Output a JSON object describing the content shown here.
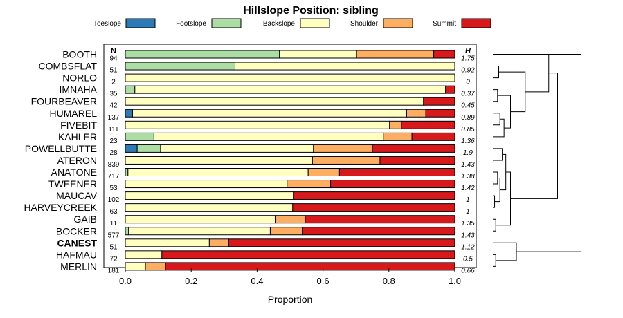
{
  "chart_data": {
    "type": "bar",
    "stacked": true,
    "orientation": "horizontal",
    "title": "Hillslope Position: sibling",
    "xlabel": "Proportion",
    "xlim": [
      0,
      1
    ],
    "x_ticks": [
      "0.0",
      "0.2",
      "0.4",
      "0.6",
      "0.8",
      "1.0"
    ],
    "n_header": "N",
    "h_header": "H",
    "highlight": "CANEST",
    "legend": [
      {
        "name": "Toeslope",
        "color": "#2c7bb6"
      },
      {
        "name": "Footslope",
        "color": "#abdda4"
      },
      {
        "name": "Backslope",
        "color": "#ffffbf"
      },
      {
        "name": "Shoulder",
        "color": "#fdae61"
      },
      {
        "name": "Summit",
        "color": "#d7191c"
      }
    ],
    "rows": [
      {
        "label": "BOOTH",
        "n": "94",
        "h": "1.75",
        "values": [
          0,
          0.468,
          0.234,
          0.234,
          0.064
        ]
      },
      {
        "label": "COMBSFLAT",
        "n": "51",
        "h": "0.92",
        "values": [
          0,
          0.333,
          0.667,
          0,
          0
        ]
      },
      {
        "label": "NORLO",
        "n": "2",
        "h": "0",
        "values": [
          0,
          0,
          1.0,
          0,
          0
        ]
      },
      {
        "label": "IMNAHA",
        "n": "35",
        "h": "0.37",
        "values": [
          0,
          0.029,
          0.943,
          0,
          0.028
        ]
      },
      {
        "label": "FOURBEAVER",
        "n": "42",
        "h": "0.45",
        "values": [
          0,
          0,
          0.905,
          0,
          0.095
        ]
      },
      {
        "label": "HUMAREL",
        "n": "137",
        "h": "0.89",
        "values": [
          0.022,
          0,
          0.832,
          0.058,
          0.088
        ]
      },
      {
        "label": "FIVEBIT",
        "n": "111",
        "h": "0.85",
        "values": [
          0,
          0,
          0.802,
          0.036,
          0.162
        ]
      },
      {
        "label": "KAHLER",
        "n": "23",
        "h": "1.36",
        "values": [
          0,
          0.087,
          0.696,
          0.087,
          0.13
        ]
      },
      {
        "label": "POWELLBUTTE",
        "n": "28",
        "h": "1.9",
        "values": [
          0.036,
          0.071,
          0.464,
          0.179,
          0.25
        ]
      },
      {
        "label": "ATERON",
        "n": "839",
        "h": "1.43",
        "values": [
          0,
          0,
          0.568,
          0.205,
          0.227
        ]
      },
      {
        "label": "ANATONE",
        "n": "717",
        "h": "1.38",
        "values": [
          0,
          0.008,
          0.547,
          0.095,
          0.35
        ]
      },
      {
        "label": "TWEENER",
        "n": "53",
        "h": "1.42",
        "values": [
          0,
          0,
          0.491,
          0.132,
          0.377
        ]
      },
      {
        "label": "MAUCAV",
        "n": "102",
        "h": "1",
        "values": [
          0,
          0,
          0.51,
          0,
          0.49
        ]
      },
      {
        "label": "HARVEYCREEK",
        "n": "63",
        "h": "1",
        "values": [
          0,
          0,
          0.508,
          0,
          0.492
        ]
      },
      {
        "label": "GAIB",
        "n": "11",
        "h": "1.35",
        "values": [
          0,
          0,
          0.455,
          0.091,
          0.454
        ]
      },
      {
        "label": "BOCKER",
        "n": "577",
        "h": "1.43",
        "values": [
          0,
          0.01,
          0.43,
          0.097,
          0.463
        ]
      },
      {
        "label": "CANEST",
        "n": "51",
        "h": "1.12",
        "values": [
          0,
          0,
          0.255,
          0.059,
          0.686
        ]
      },
      {
        "label": "HAFMAU",
        "n": "72",
        "h": "0.5",
        "values": [
          0,
          0,
          0.111,
          0,
          0.889
        ]
      },
      {
        "label": "MERLIN",
        "n": "181",
        "h": "0.66",
        "values": [
          0,
          0,
          0.061,
          0.061,
          0.878
        ]
      }
    ],
    "dendrogram": {
      "merges": [
        [
          "COMBSFLAT",
          "NORLO",
          0.1
        ],
        [
          "IMNAHA",
          "FOURBEAVER",
          0.08
        ],
        [
          "HUMAREL",
          "FIVEBIT",
          0.12
        ],
        [
          "POWELLBUTTE",
          "ATERON",
          0.16
        ],
        [
          "ANATONE",
          "TWEENER",
          0.08
        ],
        [
          "MAUCAV",
          "HARVEYCREEK",
          0.03
        ],
        [
          "GAIB",
          "BOCKER",
          0.05
        ],
        [
          "HAFMAU",
          "MERLIN",
          0.05
        ],
        [
          [
            "HUMAREL",
            "FIVEBIT"
          ],
          "KAHLER",
          0.19
        ],
        [
          [
            "ANATONE",
            "TWEENER"
          ],
          [
            "MAUCAV",
            "HARVEYCREEK"
          ],
          0.12
        ],
        [
          [
            "IMNAHA",
            "FOURBEAVER"
          ],
          [
            [
              "HUMAREL",
              "FIVEBIT"
            ],
            "KAHLER"
          ],
          0.3
        ],
        [
          [
            "POWELLBUTTE",
            "ATERON"
          ],
          [
            [
              "ANATONE",
              "TWEENER"
            ],
            [
              "MAUCAV",
              "HARVEYCREEK"
            ]
          ],
          0.22
        ],
        [
          [
            [
              "POWELLBUTTE",
              "ATERON"
            ],
            [
              [
                "ANATONE",
                "TWEENER"
              ],
              [
                "MAUCAV",
                "HARVEYCREEK"
              ]
            ]
          ],
          [
            "GAIB",
            "BOCKER"
          ],
          0.3
        ],
        [
          [
            "COMBSFLAT",
            "NORLO"
          ],
          [
            [
              "IMNAHA",
              "FOURBEAVER"
            ],
            [
              [
                "HUMAREL",
                "FIVEBIT"
              ],
              "KAHLER"
            ]
          ],
          0.55
        ],
        [
          "CANEST",
          [
            "HAFMAU",
            "MERLIN"
          ],
          0.4
        ],
        [
          "BOOTH",
          [
            [
              "COMBSFLAT",
              "NORLO"
            ],
            [
              [
                "IMNAHA",
                "FOURBEAVER"
              ],
              [
                [
                  "HUMAREL",
                  "FIVEBIT"
                ],
                "KAHLER"
              ]
            ]
          ],
          0.95
        ],
        [
          [
            "BOOTH",
            [
              [
                "COMBSFLAT",
                "NORLO"
              ],
              [
                [
                  "IMNAHA",
                  "FOURBEAVER"
                ],
                [
                  [
                    "HUMAREL",
                    "FIVEBIT"
                  ],
                  "KAHLER"
                ]
              ]
            ]
          ],
          [
            [
              [
                "POWELLBUTTE",
                "ATERON"
              ],
              [
                [
                  "ANATONE",
                  "TWEENER"
                ],
                [
                  "MAUCAV",
                  "HARVEYCREEK"
                ]
              ]
            ],
            [
              "GAIB",
              "BOCKER"
            ]
          ],
          1.1
        ],
        [
          [
            [
              "BOOTH"
            ]
          ],
          [
            "CANEST",
            [
              "HAFMAU",
              "MERLIN"
            ]
          ],
          1.5
        ]
      ]
    }
  }
}
